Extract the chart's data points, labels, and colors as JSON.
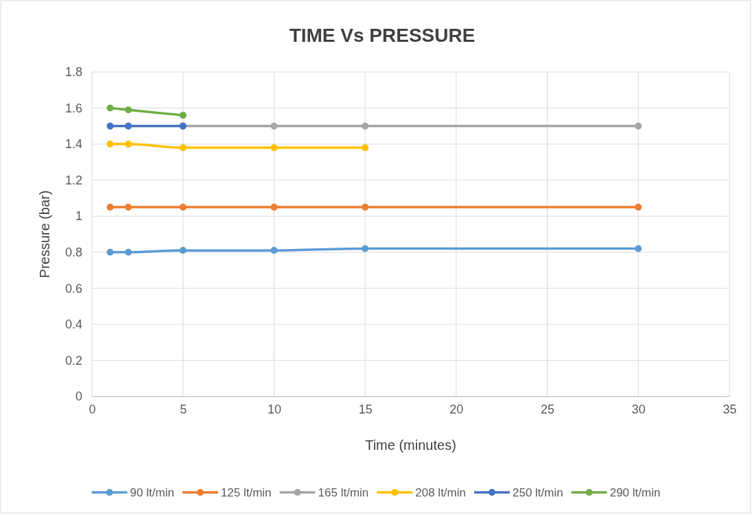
{
  "chart_data": {
    "type": "line",
    "title": "TIME Vs PRESSURE",
    "xlabel": "Time (minutes)",
    "ylabel": "Pressure (bar)",
    "x": [
      1,
      2,
      5,
      10,
      15,
      30
    ],
    "series": [
      {
        "name": "90 lt/min",
        "color": "#5b9bd5",
        "values": [
          0.8,
          0.8,
          0.81,
          0.81,
          0.82,
          0.82
        ]
      },
      {
        "name": "125 lt/min",
        "color": "#ed7d31",
        "values": [
          1.05,
          1.05,
          1.05,
          1.05,
          1.05,
          1.05
        ]
      },
      {
        "name": "165 lt/min",
        "color": "#a5a5a5",
        "values": [
          null,
          null,
          1.5,
          1.5,
          1.5,
          1.5
        ]
      },
      {
        "name": "208 lt/min",
        "color": "#ffc000",
        "x": [
          1,
          2,
          5,
          10,
          15
        ],
        "values": [
          1.4,
          1.4,
          1.38,
          1.38,
          1.38
        ]
      },
      {
        "name": "250 lt/min",
        "color": "#4472c4",
        "x": [
          1,
          2,
          5
        ],
        "values": [
          1.5,
          1.5,
          1.5
        ]
      },
      {
        "name": "290 lt/min",
        "color": "#70ad47",
        "x": [
          1,
          2,
          5
        ],
        "values": [
          1.6,
          1.59,
          1.56
        ]
      }
    ],
    "xlim": [
      0,
      35
    ],
    "xticks": [
      0,
      5,
      10,
      15,
      20,
      25,
      30,
      35
    ],
    "ylim": [
      0,
      1.8
    ],
    "yticks": [
      0,
      0.2,
      0.4,
      0.6,
      0.8,
      1,
      1.2,
      1.4,
      1.6,
      1.8
    ],
    "grid": true,
    "legend": "bottom",
    "marker": "circle",
    "line_style": "solid"
  }
}
